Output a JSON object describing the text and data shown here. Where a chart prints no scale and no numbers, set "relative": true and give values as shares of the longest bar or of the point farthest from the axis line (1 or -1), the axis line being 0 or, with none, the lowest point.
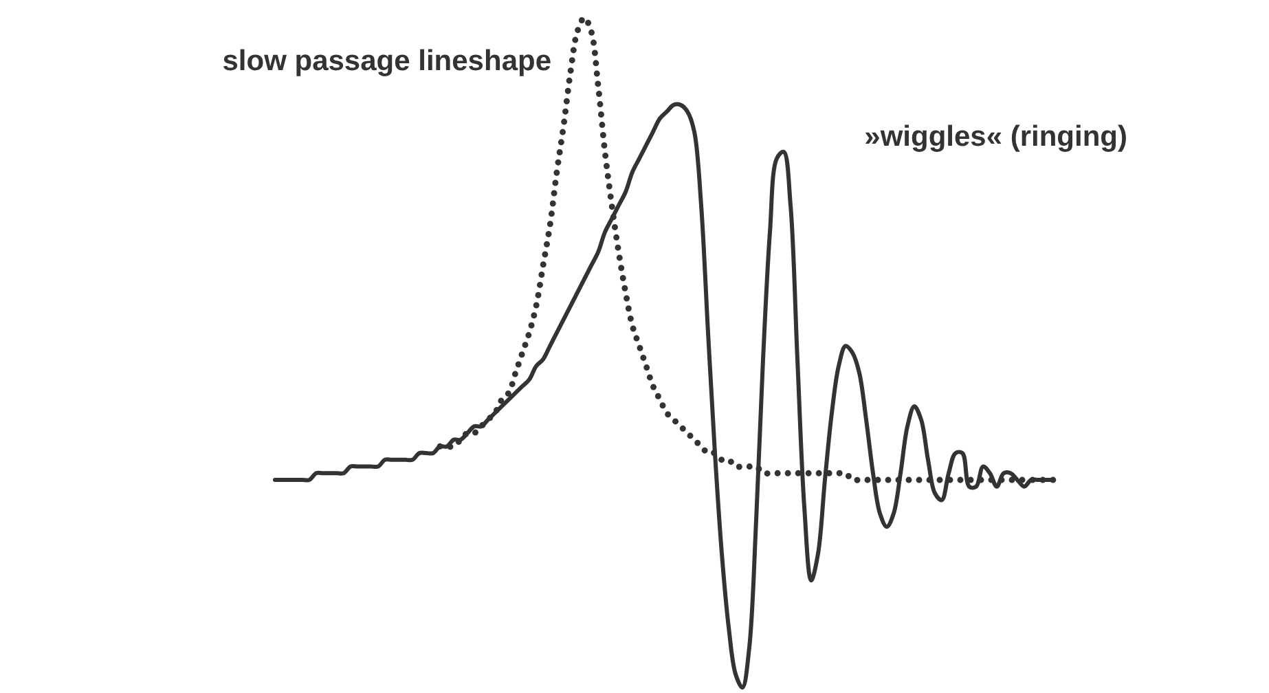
{
  "chart_data": {
    "type": "line",
    "relative": true,
    "categories": [
      null,
      null,
      null,
      null,
      null,
      null,
      null,
      null,
      null,
      null,
      null,
      null,
      null,
      null,
      null,
      null,
      null,
      null,
      null,
      null,
      null,
      null,
      null,
      null,
      null,
      null,
      null,
      null,
      null,
      null,
      null,
      null,
      null,
      null,
      null,
      null,
      null,
      null,
      null,
      null,
      null,
      null,
      null,
      null,
      null,
      null,
      null,
      null,
      null,
      null,
      null,
      null,
      null,
      null,
      null,
      null,
      null,
      null,
      null,
      null,
      null,
      null,
      null,
      null,
      null,
      null,
      null,
      null,
      null,
      null,
      null,
      null,
      null,
      null,
      null,
      null,
      null,
      null,
      null,
      null,
      null,
      null,
      null,
      null,
      null,
      null,
      null,
      null,
      null,
      null,
      null,
      null,
      null,
      null,
      null,
      null,
      null,
      null,
      null,
      null,
      null,
      null,
      null,
      null,
      null,
      null,
      null,
      null,
      null,
      null,
      null,
      null,
      null,
      null,
      null
    ],
    "series": [
      {
        "name": "slow passage lineshape",
        "color": "#333333",
        "line_style": "dotted",
        "values": [
          null,
          null,
          null,
          null,
          null,
          null,
          null,
          null,
          null,
          null,
          null,
          null,
          null,
          null,
          null,
          null,
          null,
          null,
          null,
          null,
          null,
          null,
          null,
          null,
          0.36,
          0.36,
          0.36,
          0.37,
          0.38,
          0.38,
          0.39,
          0.4,
          0.41,
          0.43,
          0.44,
          0.47,
          0.5,
          0.53,
          0.57,
          0.63,
          0.69,
          0.77,
          0.84,
          0.92,
          0.98,
          1,
          0.98,
          0.9,
          0.8,
          0.72,
          0.65,
          0.59,
          0.54,
          0.51,
          0.48,
          0.45,
          0.43,
          0.41,
          0.4,
          0.39,
          0.38,
          0.37,
          0.36,
          0.35,
          0.35,
          0.34,
          0.34,
          0.33,
          0.33,
          0.33,
          0.33,
          0.32,
          0.32,
          0.32,
          0.32,
          0.32,
          0.32,
          0.32,
          0.32,
          0.32,
          0.32,
          0.32,
          0.32,
          0.32,
          0.31,
          0.31,
          0.31,
          0.31,
          0.31,
          0.31,
          0.31,
          0.31,
          0.31,
          0.31,
          0.31,
          0.31,
          0.31,
          0.31,
          0.31,
          0.31,
          0.31,
          0.31,
          0.31,
          0.31,
          0.31,
          0.31,
          0.31,
          0.31,
          0.31,
          0.31,
          0.31,
          0.31,
          0.31,
          0.31,
          0.31
        ]
      },
      {
        "name": "»wiggles« (ringing)",
        "color": "#333333",
        "line_style": "solid",
        "values": [
          0.31,
          0.31,
          0.31,
          0.31,
          0.31,
          0.31,
          0.32,
          0.32,
          0.32,
          0.32,
          0.32,
          0.33,
          0.33,
          0.33,
          0.33,
          0.33,
          0.34,
          0.34,
          0.34,
          0.34,
          0.34,
          0.35,
          0.35,
          0.35,
          0.36,
          0.36,
          0.37,
          0.37,
          0.38,
          0.39,
          0.39,
          0.4,
          0.41,
          0.42,
          0.43,
          0.44,
          0.45,
          0.46,
          0.48,
          0.49,
          0.51,
          0.53,
          0.55,
          0.57,
          0.59,
          0.61,
          0.63,
          0.65,
          0.68,
          0.7,
          0.72,
          0.74,
          0.77,
          0.79,
          0.81,
          0.83,
          0.85,
          0.86,
          0.87,
          0.87,
          0.86,
          0.83,
          0.72,
          0.53,
          0.35,
          0.2,
          0.09,
          0.02,
          0,
          0.06,
          0.25,
          0.49,
          0.68,
          0.79,
          0.8,
          0.72,
          0.49,
          0.27,
          0.16,
          0.2,
          0.31,
          0.41,
          0.48,
          0.51,
          0.5,
          0.47,
          0.4,
          0.32,
          0.26,
          0.24,
          0.26,
          0.32,
          0.39,
          0.42,
          0.4,
          0.34,
          0.29,
          0.28,
          0.32,
          0.35,
          0.35,
          0.3,
          0.3,
          0.33,
          0.32,
          0.3,
          0.32,
          0.32,
          0.31,
          0.3,
          0.31,
          0.31,
          0.31,
          0.31,
          null
        ]
      }
    ]
  }
}
